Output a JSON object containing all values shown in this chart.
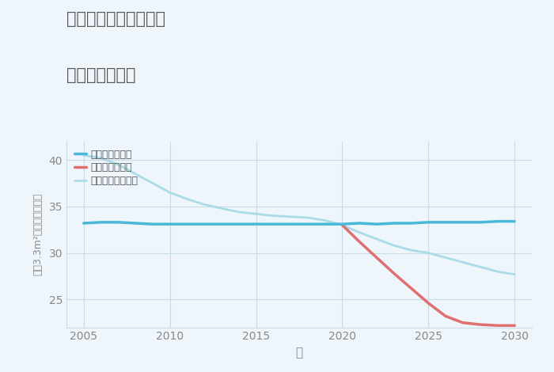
{
  "title_line1": "岐阜県岐阜市天王町の",
  "title_line2": "土地の価格推移",
  "xlabel": "年",
  "ylabel": "坪（3.3m²）単価（万円）",
  "background_color": "#eef5fb",
  "plot_bg_color": "#eef5fb",
  "xlim": [
    2004,
    2031
  ],
  "ylim": [
    22,
    42
  ],
  "xticks": [
    2005,
    2010,
    2015,
    2020,
    2025,
    2030
  ],
  "yticks": [
    25,
    30,
    35,
    40
  ],
  "good_scenario": {
    "x": [
      2005,
      2006,
      2007,
      2008,
      2009,
      2010,
      2011,
      2012,
      2013,
      2014,
      2015,
      2016,
      2017,
      2018,
      2019,
      2020,
      2021,
      2022,
      2023,
      2024,
      2025,
      2026,
      2027,
      2028,
      2029,
      2030
    ],
    "y": [
      33.2,
      33.3,
      33.3,
      33.2,
      33.1,
      33.1,
      33.1,
      33.1,
      33.1,
      33.1,
      33.1,
      33.1,
      33.1,
      33.1,
      33.1,
      33.1,
      33.2,
      33.1,
      33.2,
      33.2,
      33.3,
      33.3,
      33.3,
      33.3,
      33.4,
      33.4
    ],
    "color": "#4ab8d8",
    "label": "グッドシナリオ",
    "linewidth": 2.5
  },
  "bad_scenario": {
    "x": [
      2020,
      2021,
      2022,
      2023,
      2024,
      2025,
      2026,
      2027,
      2028,
      2029,
      2030
    ],
    "y": [
      33.0,
      31.2,
      29.5,
      27.8,
      26.2,
      24.6,
      23.2,
      22.5,
      22.3,
      22.2,
      22.2
    ],
    "color": "#e07070",
    "label": "バッドシナリオ",
    "linewidth": 2.5
  },
  "normal_scenario": {
    "x": [
      2005,
      2006,
      2007,
      2008,
      2009,
      2010,
      2011,
      2012,
      2013,
      2014,
      2015,
      2016,
      2017,
      2018,
      2019,
      2020,
      2021,
      2022,
      2023,
      2024,
      2025,
      2026,
      2027,
      2028,
      2029,
      2030
    ],
    "y": [
      40.5,
      40.2,
      39.5,
      38.5,
      37.5,
      36.5,
      35.8,
      35.2,
      34.8,
      34.4,
      34.2,
      34.0,
      33.9,
      33.8,
      33.5,
      33.0,
      32.2,
      31.5,
      30.8,
      30.3,
      30.0,
      29.5,
      29.0,
      28.5,
      28.0,
      27.7
    ],
    "color": "#aadce8",
    "label": "ノーマルシナリオ",
    "linewidth": 2.0
  },
  "title_color": "#555555",
  "axis_color": "#888888",
  "grid_color": "#c8dce8",
  "legend_text_color": "#555555"
}
